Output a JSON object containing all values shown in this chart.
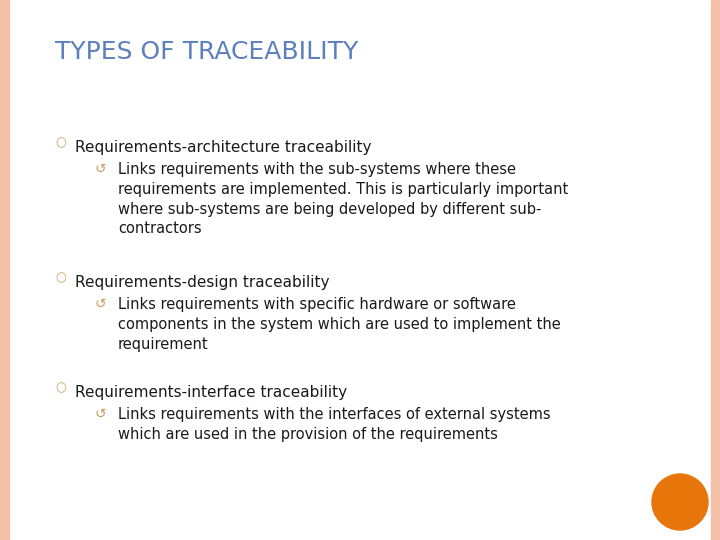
{
  "title": "TYPES OF TRACEABILITY",
  "title_color": "#5B7FBF",
  "title_fontsize": 18,
  "background_color": "#FFFFFF",
  "border_color": "#F5C0A8",
  "bullet_color": "#C8A060",
  "sub_bullet_color": "#C8A060",
  "text_color": "#1a1a1a",
  "orange_circle_color": "#E8750A",
  "bullets": [
    {
      "text": "Requirements-architecture traceability",
      "sub": "Links requirements with the sub-systems where these\nrequirements are implemented. This is particularly important\nwhere sub-systems are being developed by different sub-\ncontractors"
    },
    {
      "text": "Requirements-design traceability",
      "sub": "Links requirements with specific hardware or software\ncomponents in the system which are used to implement the\nrequirement"
    },
    {
      "text": "Requirements-interface traceability",
      "sub": "Links requirements with the interfaces of external systems\nwhich are used in the provision of the requirements"
    }
  ]
}
